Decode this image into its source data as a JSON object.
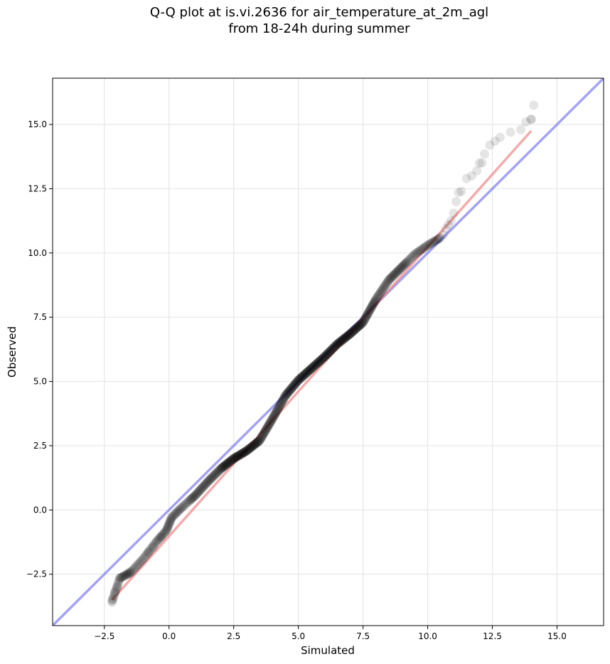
{
  "chart_data": {
    "type": "scatter",
    "title_lines": [
      "Q-Q plot at is.vi.2636 for air_temperature_at_2m_agl",
      "from 18-24h during summer"
    ],
    "xlabel": "Simulated",
    "ylabel": "Observed",
    "xlim": [
      -4.5,
      16.8
    ],
    "ylim": [
      -4.5,
      16.8
    ],
    "x_ticks": [
      -2.5,
      0.0,
      2.5,
      5.0,
      7.5,
      10.0,
      12.5,
      15.0
    ],
    "y_ticks": [
      -2.5,
      0.0,
      2.5,
      5.0,
      7.5,
      10.0,
      12.5,
      15.0
    ],
    "x_tick_labels": [
      "−2.5",
      "0.0",
      "2.5",
      "5.0",
      "7.5",
      "10.0",
      "12.5",
      "15.0"
    ],
    "y_tick_labels": [
      "−2.5",
      "0.0",
      "2.5",
      "5.0",
      "7.5",
      "10.0",
      "12.5",
      "15.0"
    ],
    "grid": true,
    "colors": {
      "points": "#000000",
      "identity_line": "#6666ee",
      "fit_line": "#f07c7c"
    },
    "identity_line": {
      "x": [
        -4.5,
        16.8
      ],
      "y": [
        -4.5,
        16.8
      ]
    },
    "fit_line": {
      "x": [
        -2.2,
        14.0
      ],
      "y": [
        -3.5,
        14.75
      ]
    },
    "quantile_curve": {
      "x": [
        -2.2,
        -1.9,
        -1.5,
        -1.0,
        -0.5,
        -0.1,
        0.1,
        0.5,
        1.0,
        1.5,
        2.0,
        2.5,
        3.0,
        3.5,
        4.0,
        4.5,
        5.0,
        5.5,
        6.0,
        6.5,
        7.0,
        7.5,
        8.0,
        8.5,
        9.0,
        9.5,
        10.0,
        10.5
      ],
      "y": [
        -3.55,
        -2.65,
        -2.45,
        -1.9,
        -1.25,
        -0.8,
        -0.3,
        0.1,
        0.55,
        1.1,
        1.6,
        2.0,
        2.3,
        2.7,
        3.55,
        4.45,
        5.05,
        5.5,
        5.95,
        6.45,
        6.85,
        7.3,
        8.2,
        8.95,
        9.45,
        9.95,
        10.3,
        10.6
      ]
    },
    "tail_points": {
      "x": [
        -2.2,
        -2.2,
        -2.1,
        -2.0,
        -1.9,
        -1.6,
        -1.5,
        -0.8,
        -0.6,
        -0.3,
        10.6,
        10.7,
        10.8,
        10.9,
        11.0,
        11.1,
        11.2,
        11.3,
        11.5,
        11.7,
        11.9,
        12.0,
        12.1,
        12.2,
        12.4,
        12.6,
        12.8,
        13.2,
        13.6,
        13.8,
        14.0,
        14.0,
        14.1
      ],
      "y": [
        -3.6,
        -3.5,
        -3.2,
        -3.0,
        -2.65,
        -2.45,
        -2.4,
        -1.65,
        -1.45,
        -1.05,
        10.7,
        10.95,
        11.1,
        11.25,
        11.55,
        12.0,
        12.35,
        12.4,
        12.9,
        13.0,
        13.2,
        13.5,
        13.5,
        13.85,
        14.2,
        14.35,
        14.5,
        14.7,
        14.8,
        15.1,
        15.2,
        15.2,
        15.75
      ]
    }
  }
}
